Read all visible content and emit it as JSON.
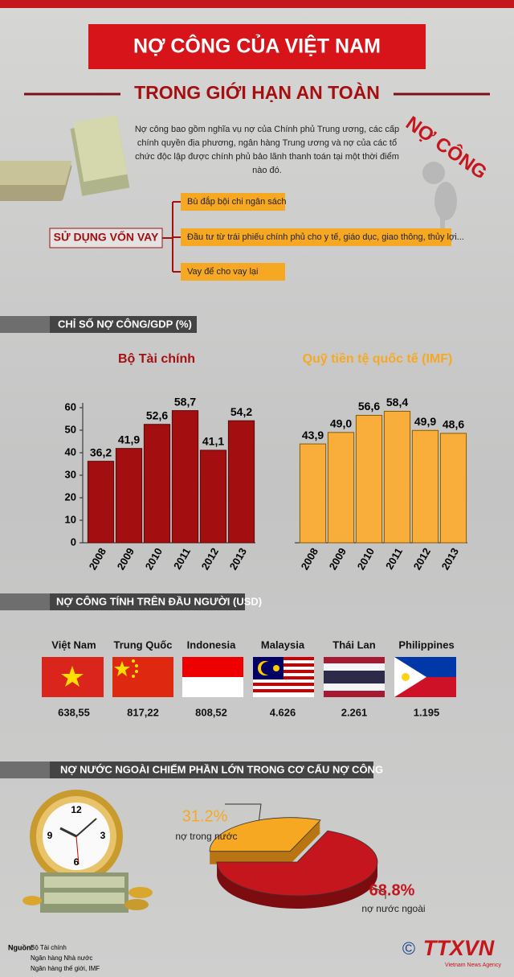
{
  "header": {
    "title": "NỢ CÔNG CỦA VIỆT NAM",
    "subtitle": "TRONG GIỚI HẠN AN TOÀN"
  },
  "intro": "Nợ công bao gồm nghĩa vụ nợ của Chính phủ Trung ương, các cấp chính quyền địa phương, ngân hàng Trung ương và nợ của các tổ chức độc lập được chính phủ bảo lãnh thanh toán tại một thời điểm nào đó.",
  "badge": "NỢ CÔNG",
  "uses": {
    "label": "SỬ DỤNG VỐN VAY",
    "items": [
      "Bù đắp bội chi ngân sách",
      "Đầu tư từ trái phiếu chính phủ cho y tế, giáo dục, giao thông, thủy lợi...",
      "Vay để cho vay lại"
    ]
  },
  "gdp_section": "CHỈ SỐ NỢ CÔNG/GDP (%)",
  "chart_data": [
    {
      "type": "bar",
      "title": "Bộ Tài chính",
      "categories": [
        "2008",
        "2009",
        "2010",
        "2011",
        "2012",
        "2013"
      ],
      "values": [
        36.2,
        41.9,
        52.6,
        58.7,
        41.1,
        54.2
      ],
      "value_labels": [
        "36,2",
        "41,9",
        "52,6",
        "58,7",
        "41,1",
        "54,2"
      ],
      "color": "#a30f10",
      "ylim": [
        0,
        60
      ],
      "yticks": [
        0,
        10,
        20,
        30,
        40,
        50,
        60
      ]
    },
    {
      "type": "bar",
      "title": "Quỹ tiền tệ quốc tế (IMF)",
      "categories": [
        "2008",
        "2009",
        "2010",
        "2011",
        "2012",
        "2013"
      ],
      "values": [
        43.9,
        49.0,
        56.6,
        58.4,
        49.9,
        48.6
      ],
      "value_labels": [
        "43,9",
        "49,0",
        "56,6",
        "58,4",
        "49,9",
        "48,6"
      ],
      "color": "#f9ae3b",
      "ylim": [
        0,
        60
      ]
    },
    {
      "type": "pie",
      "categories": [
        "nợ trong nước",
        "nợ nước ngoài"
      ],
      "values": [
        31.2,
        68.8
      ],
      "value_labels": [
        "31.2%",
        "68.8%"
      ],
      "colors": [
        "#f7a823",
        "#c4161c"
      ]
    }
  ],
  "per_capita": {
    "title": "NỢ CÔNG TÍNH TRÊN ĐẦU NGƯỜI (USD)",
    "countries": [
      {
        "name": "Việt Nam",
        "value": "638,55"
      },
      {
        "name": "Trung Quốc",
        "value": "817,22"
      },
      {
        "name": "Indonesia",
        "value": "808,52"
      },
      {
        "name": "Malaysia",
        "value": "4.626"
      },
      {
        "name": "Thái Lan",
        "value": "2.261"
      },
      {
        "name": "Philippines",
        "value": "1.195"
      }
    ]
  },
  "structure_title": "NỢ NƯỚC NGOÀI CHIẾM PHẦN LỚN TRONG CƠ CẤU NỢ CÔNG",
  "clock_numbers": [
    "12",
    "3",
    "6",
    "9"
  ],
  "sources": {
    "label": "Nguồn:",
    "items": [
      "Bộ Tài chính",
      "Ngân hàng Nhà nước",
      "Ngân hàng thế giới, IMF"
    ]
  },
  "logo": {
    "mark": "©",
    "name": "TTXVN",
    "tagline": "Vietnam News Agency"
  }
}
